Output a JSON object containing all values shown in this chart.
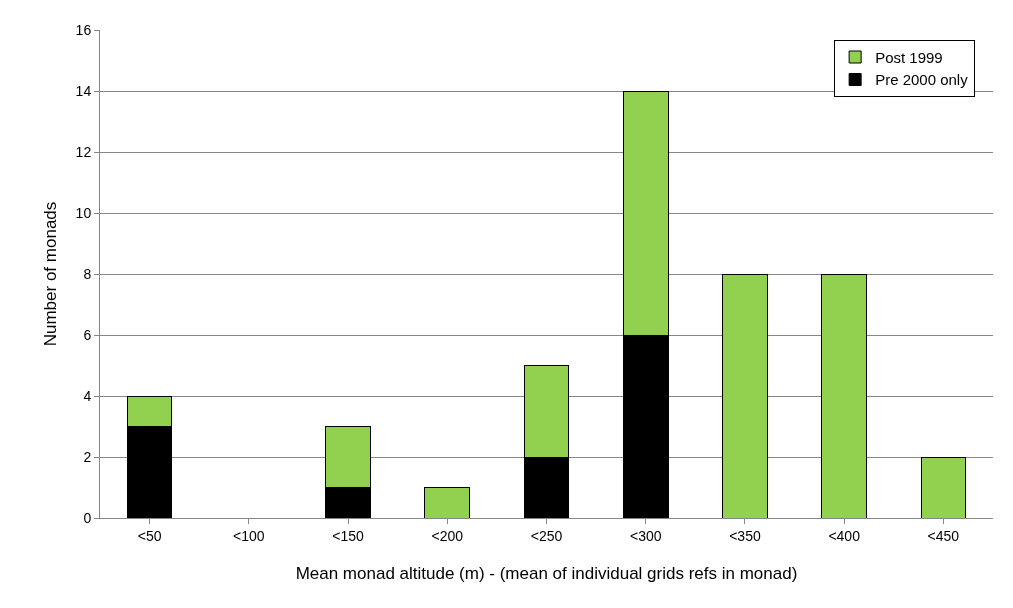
{
  "chart_data": {
    "type": "bar",
    "stacked": true,
    "xlabel": "Mean monad altitude (m) - (mean of individual grids refs in monad)",
    "ylabel": "Number of monads",
    "categories": [
      "<50",
      "<100",
      "<150",
      "<200",
      "<250",
      "<300",
      "<350",
      "<400",
      "<450"
    ],
    "series": [
      {
        "name": "Pre 2000 only",
        "color": "#000000",
        "values": [
          3,
          0,
          1,
          0,
          2,
          6,
          0,
          0,
          0
        ]
      },
      {
        "name": "Post 1999",
        "color": "#92d050",
        "values": [
          1,
          0,
          2,
          1,
          3,
          8,
          8,
          8,
          2
        ]
      }
    ],
    "ylim": [
      0,
      16
    ],
    "yticks": [
      0,
      2,
      4,
      6,
      8,
      10,
      12,
      14,
      16
    ],
    "grid": "y",
    "legend": "top right"
  }
}
